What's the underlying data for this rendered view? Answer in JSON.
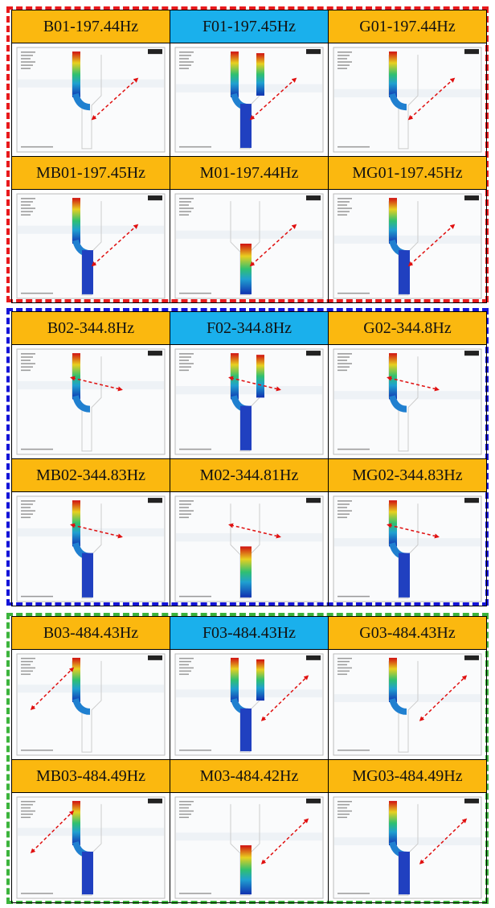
{
  "groups": [
    {
      "rows": [
        {
          "cells": [
            {
              "label": "B01-197.44Hz"
            },
            {
              "label": "F01-197.45Hz"
            },
            {
              "label": "G01-197.44Hz"
            }
          ]
        },
        {
          "cells": [
            {
              "label": "MB01-197.45Hz"
            },
            {
              "label": "M01-197.44Hz"
            },
            {
              "label": "MG01-197.45Hz"
            }
          ]
        }
      ]
    },
    {
      "rows": [
        {
          "cells": [
            {
              "label": "B02-344.8Hz"
            },
            {
              "label": "F02-344.8Hz"
            },
            {
              "label": "G02-344.8Hz"
            }
          ]
        },
        {
          "cells": [
            {
              "label": "MB02-344.83Hz"
            },
            {
              "label": "M02-344.81Hz"
            },
            {
              "label": "MG02-344.83Hz"
            }
          ]
        }
      ]
    },
    {
      "rows": [
        {
          "cells": [
            {
              "label": "B03-484.43Hz"
            },
            {
              "label": "F03-484.43Hz"
            },
            {
              "label": "G03-484.43Hz"
            }
          ]
        },
        {
          "cells": [
            {
              "label": "MB03-484.49Hz"
            },
            {
              "label": "M03-484.42Hz"
            },
            {
              "label": "MG03-484.49Hz"
            }
          ]
        }
      ]
    }
  ]
}
